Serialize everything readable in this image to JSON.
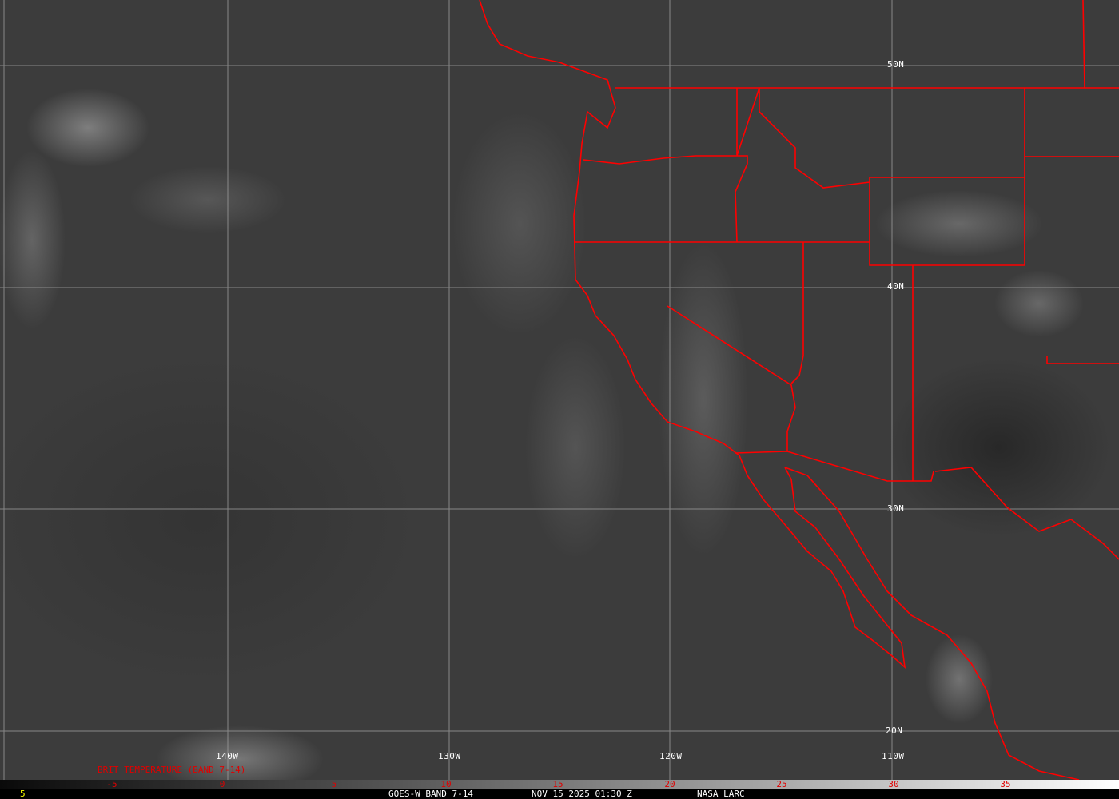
{
  "latitude_labels": [
    "50N",
    "40N",
    "30N",
    "20N"
  ],
  "longitude_labels": [
    "140W",
    "130W",
    "120W",
    "110W"
  ],
  "legend": {
    "title": "BRIT TEMPERATURE (BAND 7-14)",
    "ticks": [
      "-5",
      "0",
      "5",
      "10",
      "15",
      "20",
      "25",
      "30",
      "35"
    ],
    "min_label": "5"
  },
  "footer": {
    "satellite": "GOES-W BAND 7-14",
    "timestamp": "NOV 15 2025 01:30 Z",
    "source": "NASA LARC"
  },
  "colors": {
    "boundaries": "#ff0000",
    "grid": "#a0a0a0",
    "tick_labels": "#e00000",
    "min_label": "#ffff00"
  }
}
